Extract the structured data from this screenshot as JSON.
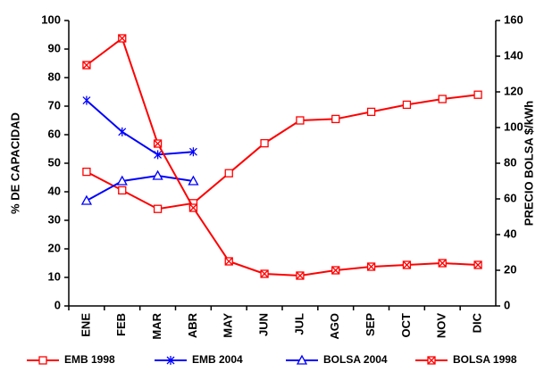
{
  "chart_data": {
    "type": "line",
    "categories": [
      "ENE",
      "FEB",
      "MAR",
      "ABR",
      "MAY",
      "JUN",
      "JUL",
      "AGO",
      "SEP",
      "OCT",
      "NOV",
      "DIC"
    ],
    "ylabel": "% DE CAPACIDAD",
    "y2label": "PRECIO BOLSA $/kWh",
    "ylim": [
      0,
      100
    ],
    "yticks": [
      0,
      10,
      20,
      30,
      40,
      50,
      60,
      70,
      80,
      90,
      100
    ],
    "y2lim": [
      0,
      160
    ],
    "y2ticks": [
      0,
      20,
      40,
      60,
      80,
      100,
      120,
      140,
      160
    ],
    "grid": false,
    "legend": "bottom",
    "series": [
      {
        "name": "EMB 1998",
        "color": "#ff0000",
        "marker": "square",
        "values": [
          47,
          40.5,
          34,
          36,
          46.5,
          57,
          65,
          65.5,
          68,
          70.5,
          72.5,
          74
        ]
      },
      {
        "name": "EMB 2004",
        "color": "#0000ff",
        "marker": "star",
        "values": [
          72,
          61,
          53,
          54,
          null,
          null,
          null,
          null,
          null,
          null,
          null,
          null
        ]
      },
      {
        "name": "BOLSA 2004",
        "color": "#0000ff",
        "marker": "triangle",
        "axis": "y2",
        "values": [
          59,
          70,
          73,
          70,
          null,
          null,
          null,
          null,
          null,
          null,
          null,
          null
        ]
      },
      {
        "name": "BOLSA 1998",
        "color": "#ff0000",
        "marker": "square-x",
        "axis": "y2",
        "values": [
          135,
          150,
          91,
          55,
          25,
          18,
          17,
          20,
          22,
          23,
          24,
          23
        ]
      }
    ]
  }
}
